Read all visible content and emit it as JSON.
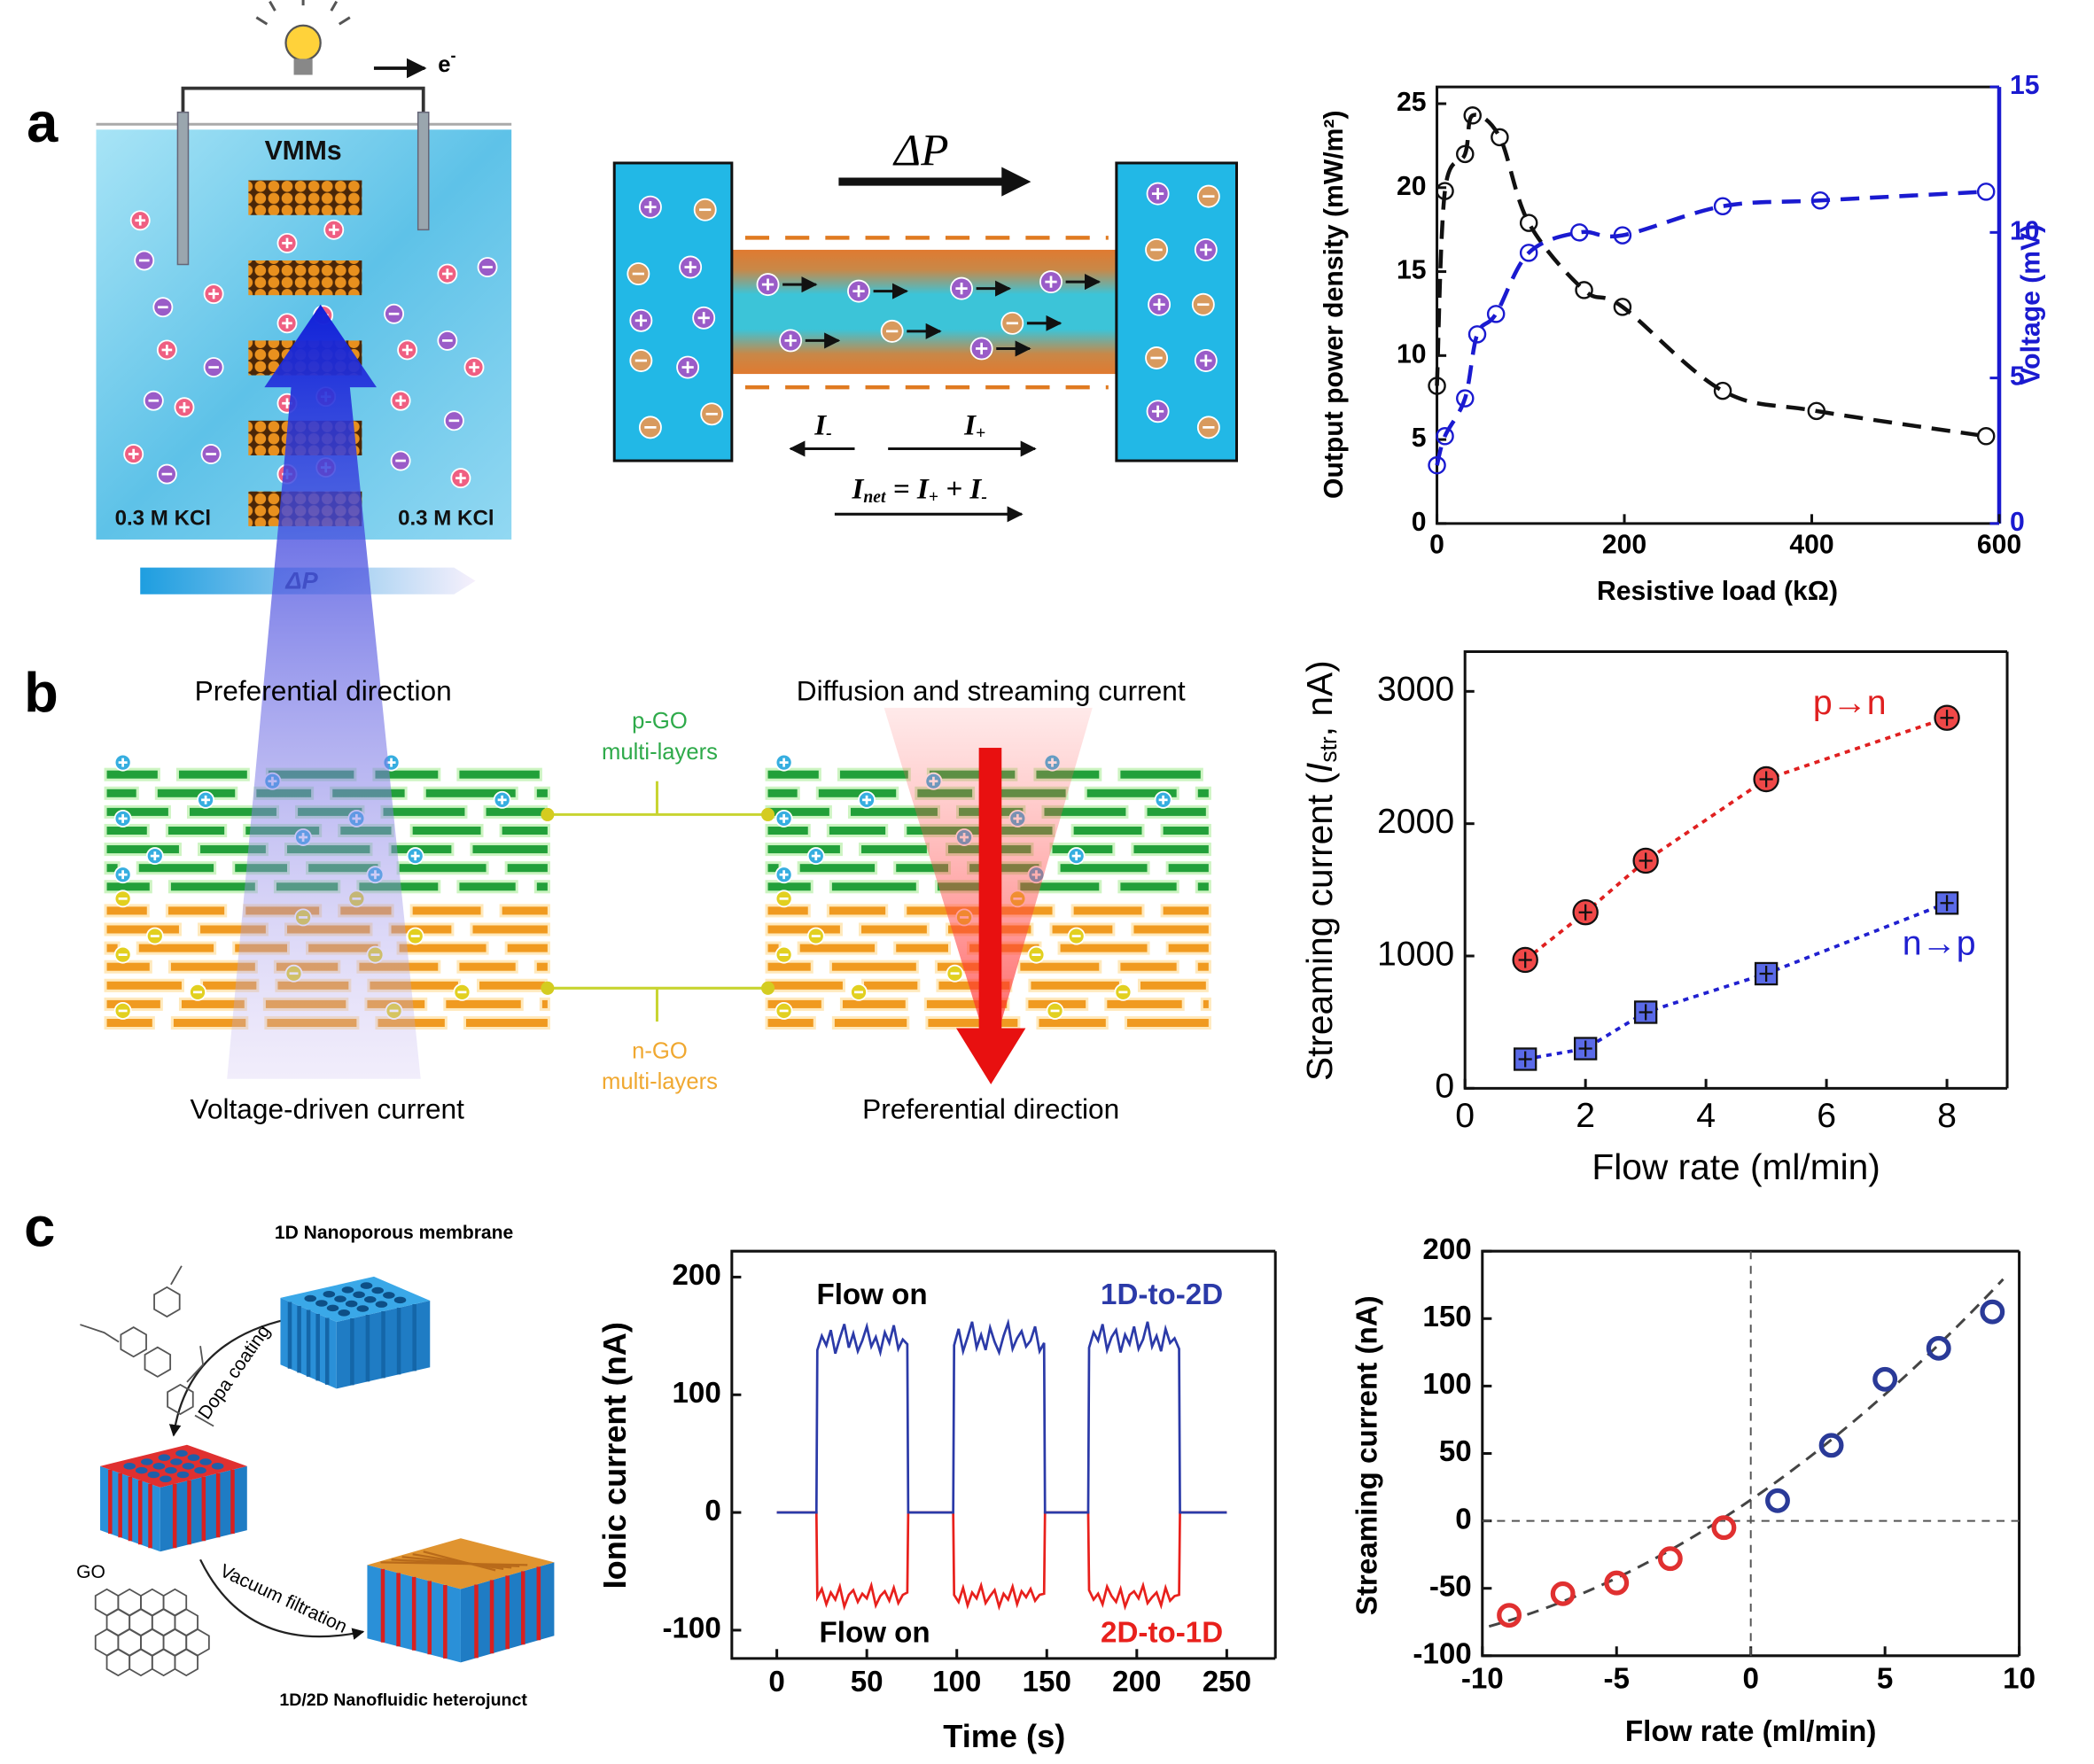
{
  "panel_labels": [
    "a",
    "b",
    "c"
  ],
  "figure_a": {
    "membrane": "VMMs",
    "left_solution": "0.3 M KCl",
    "right_solution": "0.3 M KCl",
    "pressure": "ΔP",
    "electron": "e",
    "electron_charge": "-",
    "channel_pressure": "ΔP",
    "current_minus": [
      "I",
      "-"
    ],
    "current_plus": [
      "I",
      "+"
    ],
    "net_current": [
      "I",
      "net",
      " = ",
      "I",
      "+",
      " + ",
      "I",
      "-"
    ]
  },
  "figure_b": {
    "left_top": "Preferential direction",
    "left_bottom": "Voltage-driven current",
    "right_top": "Diffusion and streaming current",
    "right_bottom": "Preferential direction",
    "p_layer": [
      "p-GO",
      "multi-layers"
    ],
    "n_layer": [
      "n-GO",
      "multi-layers"
    ]
  },
  "figure_c": {
    "membrane": "1D Nanoporous membrane",
    "coating": "Dopa coating",
    "go": "GO",
    "filtration": "Vacuum filtration",
    "heterojunction": "1D/2D Nanofluidic heterojunct"
  },
  "chart_data": [
    {
      "type": "scatter",
      "xlabel": "Resistive load (kΩ)",
      "ylabel": "Output power density (mW/m²)",
      "y2label": "Voltage (mV)",
      "xlim": [
        0,
        600
      ],
      "xticks": [
        0,
        200,
        400,
        600
      ],
      "ylim": [
        0,
        26
      ],
      "yticks": [
        0,
        5,
        10,
        15,
        20,
        25
      ],
      "y2lim": [
        0,
        15
      ],
      "y2ticks": [
        0,
        5,
        10,
        15
      ],
      "series": [
        {
          "color": "#111111",
          "marker": "circle",
          "line": "dashed",
          "x": [
            0,
            8.5,
            30,
            38,
            67,
            98,
            157,
            198,
            305,
            405,
            586
          ],
          "values": [
            8.2,
            19.8,
            22,
            24.3,
            23,
            17.9,
            13.9,
            12.9,
            7.9,
            6.7,
            5.2
          ]
        },
        {
          "color": "#1a1ad0",
          "marker": "circle",
          "line": "dashed",
          "axis": "y2",
          "x": [
            0,
            8.5,
            30,
            43,
            63,
            98,
            152,
            198,
            305,
            409,
            586
          ],
          "values": [
            2.0,
            3.0,
            4.3,
            6.5,
            7.2,
            9.3,
            10.0,
            9.9,
            10.9,
            11.1,
            11.4
          ]
        }
      ]
    },
    {
      "type": "scatter",
      "xlabel": "Flow rate (ml/min)",
      "ylabel": [
        "Streaming current (",
        "I",
        "str",
        ", nA)"
      ],
      "xlim": [
        0,
        9
      ],
      "xticks": [
        0,
        2,
        4,
        6,
        8
      ],
      "ylim": [
        0,
        3300
      ],
      "yticks": [
        0,
        1000,
        2000,
        3000
      ],
      "series": [
        {
          "name": "p→n",
          "color": "#e02020",
          "marker": "circle",
          "line": "dotted",
          "x": [
            1,
            2,
            3,
            5,
            8
          ],
          "values": [
            970,
            1330,
            1720,
            2336,
            2800
          ]
        },
        {
          "name": "n→p",
          "color": "#2020d0",
          "marker": "square",
          "line": "dotted",
          "x": [
            1,
            2,
            3,
            5,
            8
          ],
          "values": [
            220,
            300,
            575,
            866,
            1400
          ]
        }
      ]
    },
    {
      "type": "line",
      "xlabel": "Time (s)",
      "ylabel": "Ionic current (nA)",
      "xlim": [
        -25,
        277
      ],
      "xticks": [
        0,
        50,
        100,
        150,
        200,
        250
      ],
      "ylim": [
        -124,
        222
      ],
      "yticks": [
        -100,
        0,
        100,
        200
      ],
      "annotations": [
        "Flow on",
        "Flow on"
      ],
      "x": [
        0,
        22,
        22.5,
        25,
        27.5,
        30,
        32.5,
        35,
        37.5,
        40,
        42.5,
        45,
        47.5,
        50,
        52.5,
        55,
        57.5,
        60,
        62.5,
        65,
        67.5,
        70,
        72.5,
        73,
        98,
        98.5,
        101,
        103.5,
        106,
        108.5,
        111,
        113.5,
        116,
        118.5,
        121,
        123.5,
        126,
        128.5,
        131,
        133.5,
        136,
        138.5,
        141,
        143.5,
        146,
        148.5,
        149,
        173,
        173.5,
        176,
        178.5,
        181,
        183.5,
        186,
        188.5,
        191,
        193.5,
        196,
        198.5,
        201,
        203.5,
        206,
        208.5,
        211,
        213.5,
        216,
        218.5,
        221,
        223.5,
        224,
        250
      ],
      "series": [
        {
          "name": "2D-to-1D",
          "color": "#e8201c",
          "values": [
            0,
            0,
            -72,
            -65,
            -78,
            -68,
            -74,
            -63,
            -80,
            -70,
            -66,
            -76,
            -69,
            -73,
            -62,
            -79,
            -71,
            -67,
            -75,
            -64,
            -77,
            -70,
            -68,
            0,
            0,
            -70,
            -76,
            -64,
            -79,
            -68,
            -73,
            -62,
            -77,
            -71,
            -66,
            -80,
            -69,
            -74,
            -63,
            -78,
            -67,
            -72,
            -65,
            -75,
            -70,
            -69,
            0,
            0,
            -66,
            -74,
            -69,
            -78,
            -63,
            -71,
            -76,
            -65,
            -80,
            -70,
            -67,
            -73,
            -62,
            -77,
            -72,
            -68,
            -79,
            -64,
            -75,
            -71,
            -70,
            0,
            0
          ]
        },
        {
          "name": "1D-to-2D",
          "color": "#2b3aa8",
          "values": [
            0,
            0,
            138,
            150,
            142,
            155,
            135,
            148,
            160,
            140,
            152,
            137,
            146,
            158,
            141,
            149,
            136,
            153,
            144,
            159,
            139,
            147,
            143,
            0,
            0,
            142,
            156,
            137,
            149,
            162,
            140,
            151,
            138,
            157,
            145,
            136,
            150,
            161,
            139,
            148,
            154,
            141,
            146,
            158,
            137,
            144,
            0,
            0,
            140,
            153,
            146,
            160,
            138,
            149,
            155,
            136,
            151,
            143,
            158,
            139,
            147,
            162,
            141,
            150,
            137,
            156,
            144,
            148,
            139,
            0,
            0
          ]
        }
      ]
    },
    {
      "type": "scatter",
      "xlabel": "Flow rate (ml/min)",
      "ylabel": "Streaming current (nA)",
      "xlim": [
        -10,
        10
      ],
      "xticks": [
        -10,
        -5,
        0,
        5,
        10
      ],
      "ylim": [
        -100,
        200
      ],
      "yticks": [
        -100,
        -50,
        0,
        50,
        100,
        150,
        200
      ],
      "series": [
        {
          "color": "#e03030",
          "marker": "ring",
          "x": [
            -9,
            -7,
            -5,
            -3,
            -1
          ],
          "values": [
            -70,
            -54,
            -46,
            -28,
            -5
          ]
        },
        {
          "color": "#2a3a98",
          "marker": "ring",
          "x": [
            1,
            3,
            5,
            7,
            9
          ],
          "values": [
            15,
            56,
            105,
            128,
            155
          ]
        }
      ]
    }
  ]
}
